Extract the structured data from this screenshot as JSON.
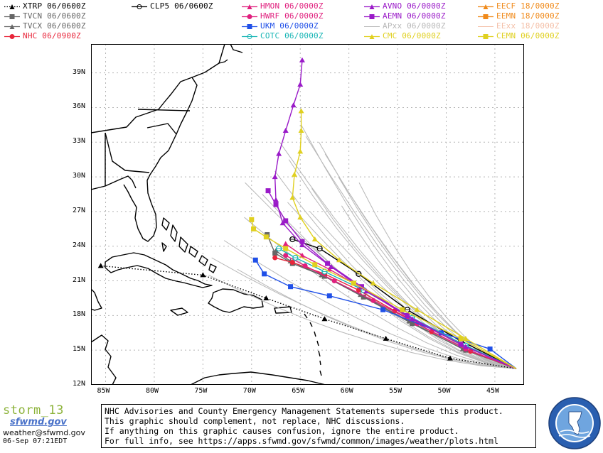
{
  "legend": [
    {
      "label": "XTRP 06/0600Z",
      "color": "#000000",
      "marker": "triangle",
      "dotted": true
    },
    {
      "label": "TVCN 06/0600Z",
      "color": "#666666",
      "marker": "square"
    },
    {
      "label": "TVCX 06/0600Z",
      "color": "#666666",
      "marker": "triangle"
    },
    {
      "label": "NHC 06/0900Z",
      "color": "#e8253a",
      "marker": "circle"
    },
    {
      "label": "CLP5 06/0600Z",
      "color": "#000000",
      "marker": "theta"
    },
    {
      "label": "HMON 06/0000Z",
      "color": "#e0207e",
      "marker": "triangle"
    },
    {
      "label": "HWRF 06/0000Z",
      "color": "#e0207e",
      "marker": "circle"
    },
    {
      "label": "UKM 06/0000Z",
      "color": "#2050e8",
      "marker": "square"
    },
    {
      "label": "COTC 06/0000Z",
      "color": "#17b5b5",
      "marker": "theta"
    },
    {
      "label": "AVNO 06/0000Z",
      "color": "#9a1ac8",
      "marker": "triangle"
    },
    {
      "label": "AEMN 06/0000Z",
      "color": "#9a1ac8",
      "marker": "square"
    },
    {
      "label": "APxx 06/0000Z",
      "color": "#b8b8b8",
      "marker": "none"
    },
    {
      "label": "CMC 06/0000Z",
      "color": "#e0d020",
      "marker": "triangle"
    },
    {
      "label": "EECF 18/0000Z",
      "color": "#f08a1a",
      "marker": "triangle"
    },
    {
      "label": "EEMN 18/0000Z",
      "color": "#f08a1a",
      "marker": "square"
    },
    {
      "label": "EExx 18/0000Z",
      "color": "#f4c0a8",
      "marker": "none"
    },
    {
      "label": "CEMN 06/0000Z",
      "color": "#e0d020",
      "marker": "square"
    }
  ],
  "axes": {
    "lat_labels": [
      "39N",
      "36N",
      "33N",
      "30N",
      "27N",
      "24N",
      "21N",
      "18N",
      "15N",
      "12N"
    ],
    "lon_labels": [
      "85W",
      "80W",
      "75W",
      "70W",
      "65W",
      "60W",
      "55W",
      "50W",
      "45W"
    ]
  },
  "map": {
    "ocean": "#ffffff",
    "land_outline": "#000000",
    "grid": "#b5b5b5",
    "tracks": [
      {
        "model": "XTRP",
        "color": "#000000",
        "marker": "triangle",
        "dotted": true,
        "points": [
          [
            -42.8,
            13.4
          ],
          [
            -49.6,
            14.3
          ],
          [
            -56.2,
            16.0
          ],
          [
            -62.5,
            17.7
          ],
          [
            -68.5,
            19.5
          ],
          [
            -75.0,
            21.5
          ],
          [
            -85.5,
            22.3
          ]
        ]
      },
      {
        "model": "TVCN",
        "color": "#666666",
        "marker": "square",
        "points": [
          [
            -42.8,
            13.4
          ],
          [
            -48.0,
            15.0
          ],
          [
            -53.5,
            17.3
          ],
          [
            -58.5,
            19.6
          ],
          [
            -62.5,
            21.4
          ],
          [
            -65.8,
            22.5
          ],
          [
            -67.6,
            23.4
          ],
          [
            -68.4,
            25.0
          ]
        ]
      },
      {
        "model": "TVCX",
        "color": "#666666",
        "marker": "triangle",
        "points": [
          [
            -42.8,
            13.4
          ],
          [
            -48.3,
            15.1
          ],
          [
            -53.8,
            17.5
          ],
          [
            -58.8,
            19.8
          ],
          [
            -62.8,
            21.5
          ],
          [
            -66.0,
            22.7
          ],
          [
            -67.5,
            23.6
          ]
        ]
      },
      {
        "model": "NHC",
        "color": "#e8253a",
        "marker": "circle",
        "points": [
          [
            -42.8,
            13.4
          ],
          [
            -47.5,
            14.9
          ],
          [
            -51.5,
            16.6
          ],
          [
            -55.3,
            18.4
          ],
          [
            -59.0,
            20.2
          ],
          [
            -62.5,
            21.6
          ],
          [
            -65.8,
            22.6
          ],
          [
            -67.6,
            23.0
          ]
        ]
      },
      {
        "model": "CLP5",
        "color": "#000000",
        "marker": "theta",
        "points": [
          [
            -42.8,
            13.4
          ],
          [
            -48.5,
            15.8
          ],
          [
            -54.0,
            18.5
          ],
          [
            -59.0,
            21.6
          ],
          [
            -63.0,
            23.8
          ],
          [
            -65.8,
            24.6
          ]
        ]
      },
      {
        "model": "HMON",
        "color": "#e0207e",
        "marker": "triangle",
        "points": [
          [
            -42.8,
            13.4
          ],
          [
            -48.5,
            15.5
          ],
          [
            -54.0,
            17.9
          ],
          [
            -58.5,
            20.3
          ],
          [
            -62.0,
            22.0
          ],
          [
            -64.8,
            23.2
          ],
          [
            -66.5,
            24.2
          ]
        ]
      },
      {
        "model": "HWRF",
        "color": "#e0207e",
        "marker": "circle",
        "points": [
          [
            -42.8,
            13.4
          ],
          [
            -48.0,
            15.1
          ],
          [
            -53.0,
            17.3
          ],
          [
            -57.5,
            19.3
          ],
          [
            -61.5,
            21.0
          ],
          [
            -64.5,
            22.3
          ],
          [
            -66.5,
            23.2
          ]
        ]
      },
      {
        "model": "UKM",
        "color": "#2050e8",
        "marker": "square",
        "points": [
          [
            -42.8,
            13.4
          ],
          [
            -45.5,
            15.1
          ],
          [
            -50.5,
            16.5
          ],
          [
            -56.5,
            18.5
          ],
          [
            -62.0,
            19.7
          ],
          [
            -66.0,
            20.5
          ],
          [
            -68.7,
            21.6
          ],
          [
            -69.6,
            22.8
          ]
        ]
      },
      {
        "model": "COTC",
        "color": "#17b5b5",
        "marker": "theta",
        "points": [
          [
            -42.8,
            13.4
          ],
          [
            -48.0,
            15.4
          ],
          [
            -53.5,
            17.8
          ],
          [
            -58.5,
            20.2
          ],
          [
            -62.5,
            21.8
          ],
          [
            -65.5,
            23.0
          ],
          [
            -67.2,
            23.8
          ]
        ]
      },
      {
        "model": "AVNO",
        "color": "#9a1ac8",
        "marker": "triangle",
        "points": [
          [
            -42.8,
            13.4
          ],
          [
            -48.0,
            15.3
          ],
          [
            -53.5,
            17.7
          ],
          [
            -58.2,
            20.1
          ],
          [
            -61.8,
            22.2
          ],
          [
            -64.8,
            24.1
          ],
          [
            -66.8,
            26.0
          ],
          [
            -67.5,
            28.0
          ],
          [
            -67.6,
            30.0
          ],
          [
            -67.2,
            32.0
          ],
          [
            -66.5,
            34.0
          ],
          [
            -65.7,
            36.2
          ],
          [
            -65.0,
            38.0
          ],
          [
            -64.8,
            40.1
          ]
        ]
      },
      {
        "model": "AEMN",
        "color": "#9a1ac8",
        "marker": "square",
        "points": [
          [
            -42.8,
            13.4
          ],
          [
            -48.5,
            15.5
          ],
          [
            -54.0,
            18.0
          ],
          [
            -58.7,
            20.5
          ],
          [
            -62.2,
            22.5
          ],
          [
            -64.8,
            24.4
          ],
          [
            -66.5,
            26.2
          ],
          [
            -67.5,
            27.6
          ],
          [
            -68.3,
            28.8
          ]
        ]
      },
      {
        "model": "CMC",
        "color": "#e0d020",
        "marker": "triangle",
        "points": [
          [
            -42.8,
            13.4
          ],
          [
            -48.0,
            16.0
          ],
          [
            -53.0,
            18.5
          ],
          [
            -57.5,
            20.8
          ],
          [
            -61.0,
            22.8
          ],
          [
            -63.5,
            24.6
          ],
          [
            -65.0,
            26.5
          ],
          [
            -65.8,
            28.2
          ],
          [
            -65.6,
            30.2
          ],
          [
            -65.0,
            32.2
          ],
          [
            -64.9,
            34.0
          ],
          [
            -64.9,
            35.7
          ]
        ]
      },
      {
        "model": "CEMN",
        "color": "#e0d020",
        "marker": "square",
        "points": [
          [
            -42.8,
            13.4
          ],
          [
            -48.5,
            16.0
          ],
          [
            -54.5,
            18.5
          ],
          [
            -59.5,
            20.8
          ],
          [
            -63.5,
            22.4
          ],
          [
            -66.5,
            23.8
          ],
          [
            -68.5,
            24.8
          ],
          [
            -69.8,
            25.5
          ],
          [
            -70.0,
            26.3
          ]
        ]
      }
    ]
  },
  "brand": {
    "name": "storm_13",
    "logo": "sfwmd.gov",
    "email": "weather@sfwmd.gov",
    "timestamp": "06-Sep 07:21EDT"
  },
  "disclaimer": {
    "line1": "NHC Advisories and County Emergency Management Statements supersede this product.",
    "line2": "This graphic should complement, not replace, NHC discussions.",
    "line3": "If anything on this graphic causes confusion, ignore the entire product.",
    "line4": "For full info, see  https://apps.sfwmd.gov/sfwmd/common/images/weather/plots.html"
  },
  "seal": {
    "icon": "sfwmd-seal-icon",
    "color": "#2a5fb0"
  }
}
